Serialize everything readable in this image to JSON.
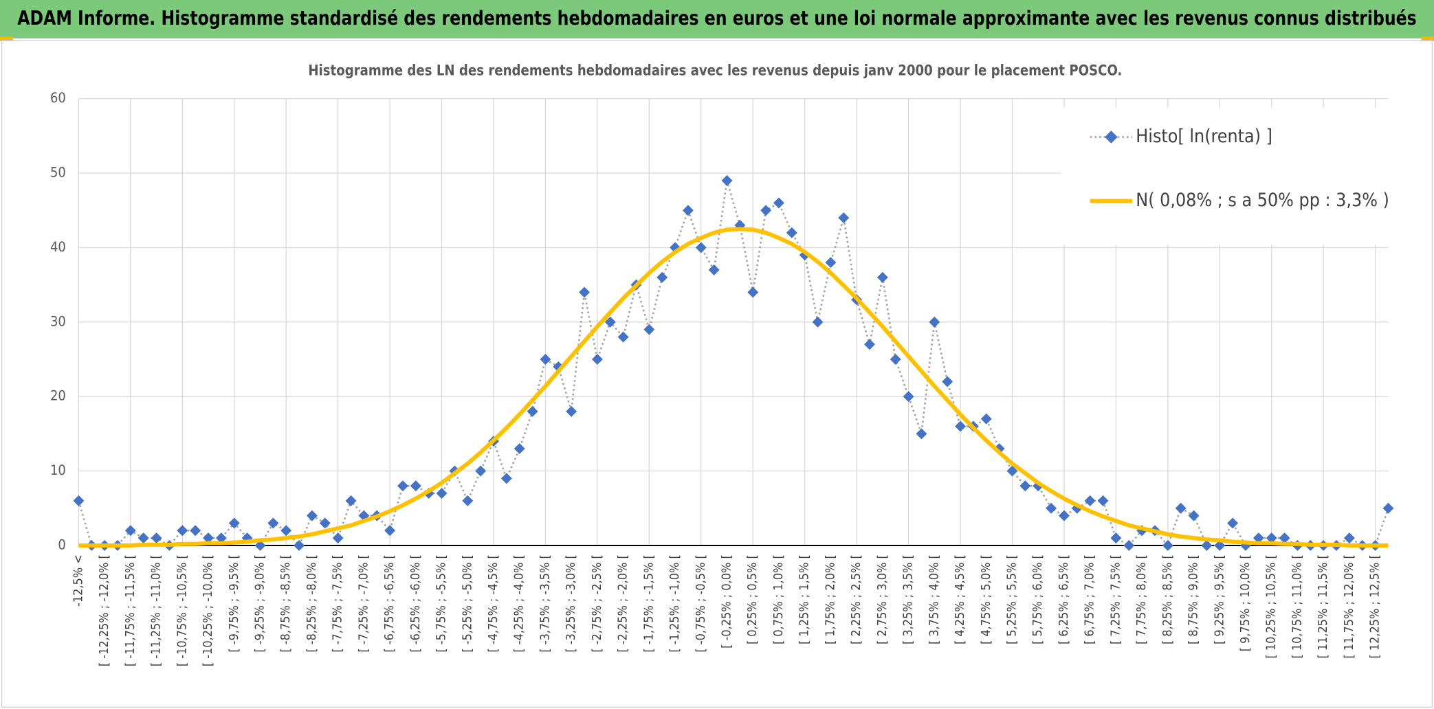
{
  "header": {
    "title": "ADAM Informe. Histogramme standardisé des rendements hebdomadaires en euros et une loi normale approximante avec les revenus connus distribués"
  },
  "chart_data": {
    "type": "line",
    "title": "Histogramme des LN des rendements hebdomadaires avec les revenus depuis janv 2000 pour le placement POSCO.",
    "categories": [
      "-12,5% <",
      null,
      "[ -12,25% ; -12,0% [",
      null,
      "[ -11,75% ; -11,5% [",
      null,
      "[ -11,25% ; -11,0% [",
      null,
      "[ -10,75% ; -10,5% [",
      null,
      "[ -10,25% ; -10,0% [",
      null,
      "[ -9,75% ; -9,5% [",
      null,
      "[ -9,25% ; -9,0% [",
      null,
      "[ -8,75% ; -8,5% [",
      null,
      "[ -8,25% ; -8,0% [",
      null,
      "[ -7,75% ; -7,5% [",
      null,
      "[ -7,25% ; -7,0% [",
      null,
      "[ -6,75% ; -6,5% [",
      null,
      "[ -6,25% ; -6,0% [",
      null,
      "[ -5,75% ; -5,5% [",
      null,
      "[ -5,25% ; -5,0% [",
      null,
      "[ -4,75% ; -4,5% [",
      null,
      "[ -4,25% ; -4,0% [",
      null,
      "[ -3,75% ; -3,5% [",
      null,
      "[ -3,25% ; -3,0% [",
      null,
      "[ -2,75% ; -2,5% [",
      null,
      "[ -2,25% ; -2,0% [",
      null,
      "[ -1,75% ; -1,5% [",
      null,
      "[ -1,25% ; -1,0% [",
      null,
      "[ -0,75% ; -0,5% [",
      null,
      "[ -0,25% ; 0,0% [",
      null,
      "[ 0,25% ; 0,5% [",
      null,
      "[ 0,75% ; 1,0% [",
      null,
      "[ 1,25% ; 1,5% [",
      null,
      "[ 1,75% ; 2,0% [",
      null,
      "[ 2,25% ; 2,5% [",
      null,
      "[ 2,75% ; 3,0% [",
      null,
      "[ 3,25% ; 3,5% [",
      null,
      "[ 3,75% ; 4,0% [",
      null,
      "[ 4,25% ; 4,5% [",
      null,
      "[ 4,75% ; 5,0% [",
      null,
      "[ 5,25% ; 5,5% [",
      null,
      "[ 5,75% ; 6,0% [",
      null,
      "[ 6,25% ; 6,5% [",
      null,
      "[ 6,75% ; 7,0% [",
      null,
      "[ 7,25% ; 7,5% [",
      null,
      "[ 7,75% ; 8,0% [",
      null,
      "[ 8,25% ; 8,5% [",
      null,
      "[ 8,75% ; 9,0% [",
      null,
      "[ 9,25% ; 9,5% [",
      null,
      "[ 9,75% ; 10,0% [",
      null,
      "[ 10,25% ; 10,5% [",
      null,
      "[ 10,75% ; 11,0% [",
      null,
      "[ 11,25% ; 11,5% [",
      null,
      "[ 11,75% ; 12,0% [",
      null,
      "[ 12,25% ; 12,5% [",
      null
    ],
    "series": [
      {
        "name": "Histo[ ln(renta) ]",
        "color": "#4472c4",
        "line_color": "#a5a5a5",
        "values": [
          6,
          0,
          0,
          0,
          2,
          1,
          1,
          0,
          2,
          2,
          1,
          1,
          3,
          1,
          0,
          3,
          2,
          0,
          4,
          3,
          1,
          6,
          4,
          4,
          2,
          8,
          8,
          7,
          7,
          10,
          6,
          10,
          14,
          9,
          13,
          18,
          25,
          24,
          18,
          34,
          25,
          30,
          28,
          35,
          29,
          36,
          40,
          45,
          40,
          37,
          49,
          43,
          34,
          45,
          46,
          42,
          39,
          30,
          38,
          44,
          33,
          27,
          36,
          25,
          20,
          15,
          30,
          22,
          16,
          16,
          17,
          13,
          10,
          8,
          8,
          5,
          4,
          5,
          6,
          6,
          1,
          0,
          2,
          2,
          0,
          5,
          4,
          0,
          0,
          3,
          0,
          1,
          1,
          1,
          0,
          0,
          0,
          0,
          1,
          0,
          0,
          5
        ]
      },
      {
        "name": "N( 0,08% ; s a 50% pp : 3,3% )",
        "color": "#ffc000",
        "values": [
          0,
          0,
          0,
          0,
          0,
          0.1,
          0.1,
          0.1,
          0.2,
          0.2,
          0.3,
          0.3,
          0.4,
          0.5,
          0.7,
          0.8,
          1.0,
          1.2,
          1.5,
          1.9,
          2.3,
          2.7,
          3.3,
          3.9,
          4.6,
          5.4,
          6.3,
          7.3,
          8.4,
          9.7,
          11.0,
          12.5,
          14.1,
          15.8,
          17.6,
          19.5,
          21.4,
          23.4,
          25.4,
          27.4,
          29.4,
          31.3,
          33.2,
          34.9,
          36.6,
          38.1,
          39.4,
          40.5,
          41.3,
          42.0,
          42.4,
          42.5,
          42.4,
          42.0,
          41.3,
          40.5,
          39.4,
          38.1,
          36.6,
          34.9,
          33.2,
          31.3,
          29.4,
          27.4,
          25.4,
          23.4,
          21.4,
          19.5,
          17.6,
          15.8,
          14.1,
          12.5,
          11.0,
          9.7,
          8.4,
          7.3,
          6.3,
          5.4,
          4.6,
          3.9,
          3.3,
          2.7,
          2.3,
          1.9,
          1.5,
          1.2,
          1.0,
          0.8,
          0.7,
          0.5,
          0.4,
          0.3,
          0.3,
          0.2,
          0.2,
          0.1,
          0.1,
          0.1,
          0,
          0,
          0,
          0
        ]
      }
    ],
    "ylim": [
      0,
      60
    ],
    "yticks": [
      0,
      10,
      20,
      30,
      40,
      50,
      60
    ],
    "grid": true,
    "legend": "upper-right"
  }
}
